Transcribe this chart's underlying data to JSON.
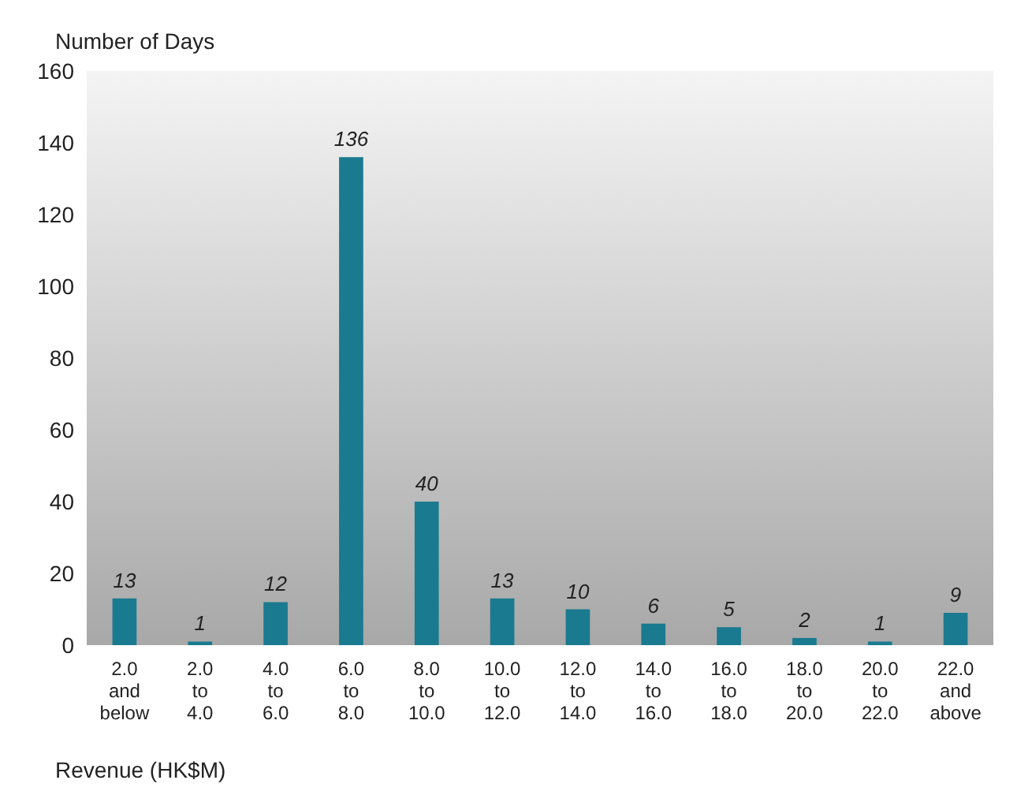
{
  "chart_data": {
    "type": "bar",
    "ylabel": "Number of Days",
    "xlabel": "Revenue (HK$M)",
    "categories": [
      "2.0\nand\nbelow",
      "2.0\nto\n4.0",
      "4.0\nto\n6.0",
      "6.0\nto\n8.0",
      "8.0\nto\n10.0",
      "10.0\nto\n12.0",
      "12.0\nto\n14.0",
      "14.0\nto\n16.0",
      "16.0\nto\n18.0",
      "18.0\nto\n20.0",
      "20.0\nto\n22.0",
      "22.0\nand\nabove"
    ],
    "values": [
      13,
      1,
      12,
      136,
      40,
      13,
      10,
      6,
      5,
      2,
      1,
      9
    ],
    "color": "#1a7a8f",
    "ylim": [
      0,
      160
    ],
    "yticks": [
      0,
      20,
      40,
      60,
      80,
      100,
      120,
      140,
      160
    ],
    "data_labels": true,
    "grid": false
  }
}
